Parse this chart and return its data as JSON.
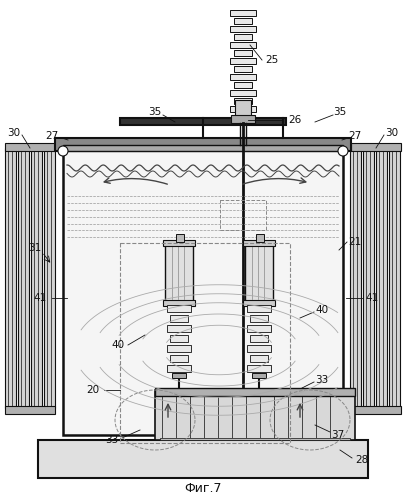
{
  "title": "Фиг.7",
  "title_fontsize": 9,
  "bg_color": "#ffffff",
  "lc": "#444444",
  "dc": "#111111",
  "gray1": "#c8c8c8",
  "gray2": "#e0e0e0",
  "gray3": "#a0a0a0"
}
